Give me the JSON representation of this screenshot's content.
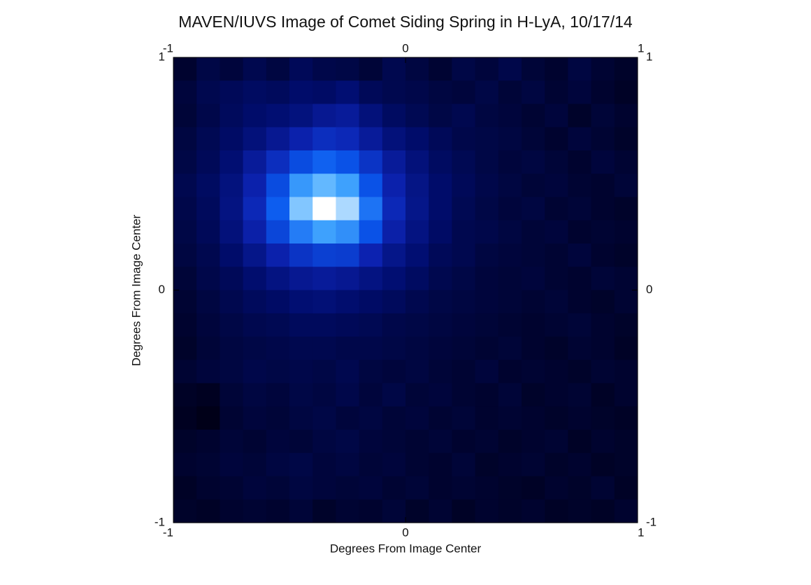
{
  "chart_data": {
    "type": "heatmap",
    "title": "MAVEN/IUVS Image of Comet Siding Spring in H-LyA, 10/17/14",
    "xlabel": "Degrees From Image Center",
    "ylabel": "Degrees From Image Center",
    "xlim": [
      -1,
      1
    ],
    "ylim": [
      -1,
      1
    ],
    "xticks": [
      -1,
      0,
      1
    ],
    "yticks": [
      -1,
      0,
      1
    ],
    "colormap": [
      "#000018",
      "#000c6a",
      "#0c22b0",
      "#0a58ee",
      "#44aaff",
      "#ffffff"
    ],
    "z": [
      [
        15,
        20,
        18,
        22,
        19,
        24,
        21,
        20,
        17,
        22,
        19,
        16,
        20,
        18,
        21,
        17,
        15,
        19,
        16,
        14
      ],
      [
        18,
        22,
        24,
        26,
        25,
        28,
        27,
        30,
        24,
        22,
        21,
        19,
        18,
        20,
        17,
        19,
        16,
        18,
        15,
        13
      ],
      [
        17,
        21,
        25,
        28,
        30,
        33,
        38,
        40,
        32,
        26,
        23,
        20,
        22,
        19,
        18,
        16,
        18,
        14,
        17,
        15
      ],
      [
        19,
        23,
        27,
        32,
        38,
        45,
        50,
        48,
        40,
        32,
        28,
        24,
        21,
        20,
        19,
        17,
        15,
        18,
        16,
        14
      ],
      [
        20,
        24,
        30,
        40,
        50,
        60,
        66,
        62,
        52,
        40,
        32,
        26,
        23,
        20,
        18,
        19,
        17,
        15,
        18,
        16
      ],
      [
        22,
        26,
        33,
        45,
        60,
        78,
        85,
        80,
        62,
        45,
        35,
        28,
        24,
        21,
        19,
        17,
        18,
        16,
        15,
        17
      ],
      [
        21,
        25,
        34,
        48,
        65,
        88,
        100,
        92,
        70,
        48,
        36,
        28,
        23,
        20,
        18,
        19,
        16,
        17,
        15,
        14
      ],
      [
        20,
        24,
        32,
        44,
        58,
        72,
        80,
        76,
        62,
        44,
        34,
        27,
        22,
        21,
        19,
        17,
        18,
        15,
        16,
        15
      ],
      [
        19,
        22,
        28,
        36,
        45,
        52,
        56,
        55,
        46,
        36,
        30,
        24,
        22,
        19,
        18,
        17,
        16,
        18,
        15,
        14
      ],
      [
        17,
        21,
        24,
        29,
        34,
        38,
        40,
        38,
        34,
        30,
        26,
        22,
        20,
        18,
        17,
        18,
        16,
        15,
        17,
        16
      ],
      [
        16,
        19,
        22,
        25,
        27,
        30,
        31,
        29,
        27,
        25,
        22,
        20,
        19,
        18,
        17,
        16,
        17,
        15,
        14,
        16
      ],
      [
        15,
        18,
        20,
        22,
        23,
        25,
        25,
        24,
        23,
        21,
        20,
        19,
        18,
        17,
        16,
        15,
        16,
        17,
        15,
        14
      ],
      [
        14,
        17,
        19,
        20,
        21,
        22,
        22,
        21,
        21,
        20,
        19,
        18,
        17,
        16,
        17,
        15,
        14,
        16,
        15,
        13
      ],
      [
        16,
        18,
        19,
        21,
        20,
        21,
        20,
        22,
        19,
        18,
        19,
        17,
        16,
        18,
        15,
        16,
        15,
        14,
        16,
        15
      ],
      [
        13,
        12,
        17,
        19,
        18,
        20,
        19,
        21,
        18,
        20,
        17,
        18,
        16,
        15,
        17,
        14,
        15,
        16,
        13,
        15
      ],
      [
        12,
        10,
        16,
        18,
        17,
        19,
        20,
        18,
        19,
        17,
        18,
        16,
        17,
        15,
        16,
        15,
        14,
        15,
        14,
        13
      ],
      [
        14,
        15,
        17,
        16,
        18,
        17,
        19,
        20,
        18,
        17,
        16,
        17,
        15,
        16,
        14,
        15,
        16,
        13,
        15,
        14
      ],
      [
        15,
        16,
        18,
        17,
        19,
        20,
        18,
        19,
        17,
        18,
        16,
        15,
        17,
        14,
        15,
        16,
        14,
        15,
        13,
        14
      ],
      [
        13,
        15,
        16,
        18,
        17,
        19,
        18,
        17,
        18,
        16,
        17,
        15,
        16,
        15,
        14,
        13,
        15,
        14,
        16,
        13
      ],
      [
        14,
        13,
        15,
        16,
        15,
        17,
        14,
        16,
        15,
        17,
        14,
        16,
        13,
        15,
        14,
        15,
        13,
        14,
        13,
        15
      ]
    ]
  }
}
